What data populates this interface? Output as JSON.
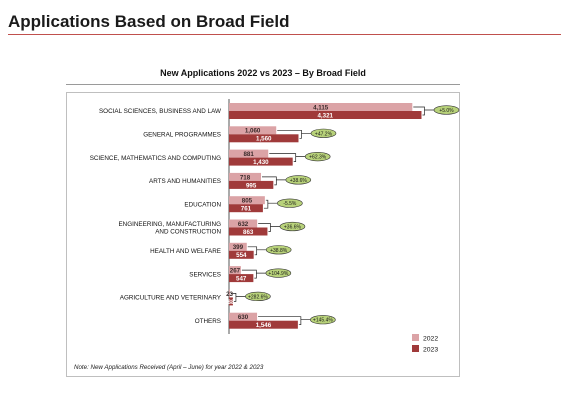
{
  "page": {
    "title": "Applications Based on Broad Field"
  },
  "chart_data": {
    "type": "bar",
    "orientation": "horizontal",
    "title": "New Applications 2022 vs 2023 – By Broad Field",
    "categories": [
      "SOCIAL SCIENCES, BUSINESS AND LAW",
      "GENERAL PROGRAMMES",
      "SCIENCE, MATHEMATICS AND COMPUTING",
      "ARTS AND HUMANITIES",
      "EDUCATION",
      "ENGINEERING, MANUFACTURING AND CONSTRUCTION",
      "HEALTH AND WELFARE",
      "SERVICES",
      "AGRICULTURE AND VETERINARY",
      "OTHERS"
    ],
    "category_lines": [
      [
        "SOCIAL SCIENCES, BUSINESS AND LAW"
      ],
      [
        "GENERAL PROGRAMMES"
      ],
      [
        "SCIENCE, MATHEMATICS AND COMPUTING"
      ],
      [
        "ARTS AND HUMANITIES"
      ],
      [
        "EDUCATION"
      ],
      [
        "ENGINEERING, MANUFACTURING",
        "AND CONSTRUCTION"
      ],
      [
        "HEALTH AND WELFARE"
      ],
      [
        "SERVICES"
      ],
      [
        "AGRICULTURE AND VETERINARY"
      ],
      [
        "OTHERS"
      ]
    ],
    "series": [
      {
        "name": "2022",
        "color": "#dba3a6",
        "values": [
          4115,
          1060,
          881,
          718,
          805,
          632,
          399,
          267,
          23,
          630
        ],
        "labels": [
          "4,115",
          "1,060",
          "881",
          "718",
          "805",
          "632",
          "399",
          "267",
          "23",
          "630"
        ]
      },
      {
        "name": "2023",
        "color": "#a03a3a",
        "values": [
          4321,
          1560,
          1430,
          995,
          761,
          863,
          554,
          547,
          88,
          1546
        ],
        "labels": [
          "4,321",
          "1,560",
          "1,430",
          "995",
          "761",
          "863",
          "554",
          "547",
          "88",
          "1,546"
        ]
      }
    ],
    "changes": [
      "+5.0%",
      "+47.2%",
      "+62.3%",
      "+38.6%",
      "-5.5%",
      "+36.6%",
      "+38.8%",
      "+104.9%",
      "+282.6%",
      "+145.4%"
    ],
    "change_bubble_color": "#b8d27a",
    "xlim": [
      0,
      4400
    ],
    "legend_position": "bottom-right",
    "grid": false,
    "note": "Note: New Applications Received (April – June) for year 2022 & 2023"
  }
}
